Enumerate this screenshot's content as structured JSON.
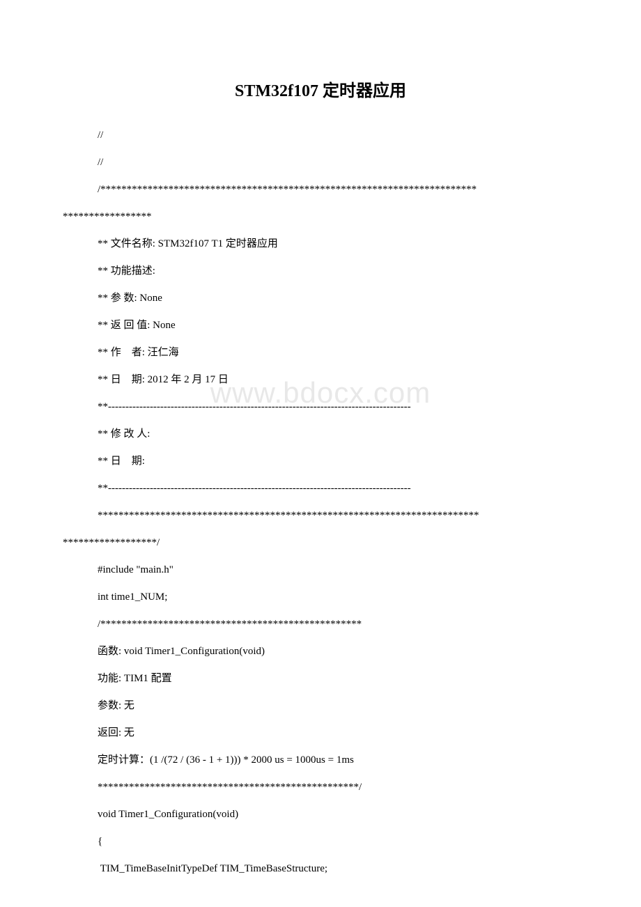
{
  "title": "STM32f107 定时器应用",
  "watermark": "www.bdocx.com",
  "lines": [
    {
      "cls": "line",
      "text": "//"
    },
    {
      "cls": "line",
      "text": "//"
    },
    {
      "cls": "line",
      "text": "/************************************************************************"
    },
    {
      "cls": "line-flush",
      "text": "*****************"
    },
    {
      "cls": "line",
      "text": "** 文件名称: STM32f107 T1 定时器应用"
    },
    {
      "cls": "line",
      "text": "** 功能描述:"
    },
    {
      "cls": "line",
      "text": "** 参 数: None"
    },
    {
      "cls": "line",
      "text": "** 返 回 值: None"
    },
    {
      "cls": "line",
      "text": "** 作    者: 汪仁海"
    },
    {
      "cls": "line",
      "text": "** 日    期: 2012 年 2 月 17 日"
    },
    {
      "cls": "line",
      "text": "**---------------------------------------------------------------------------------------"
    },
    {
      "cls": "line",
      "text": "** 修 改 人:"
    },
    {
      "cls": "line",
      "text": "** 日    期:"
    },
    {
      "cls": "line",
      "text": "**---------------------------------------------------------------------------------------"
    },
    {
      "cls": "line",
      "text": "*************************************************************************"
    },
    {
      "cls": "line-flush",
      "text": "******************/"
    },
    {
      "cls": "line",
      "text": "#include \"main.h\""
    },
    {
      "cls": "line",
      "text": "int time1_NUM;"
    },
    {
      "cls": "line",
      "text": "/**************************************************"
    },
    {
      "cls": "line",
      "text": "函数: void Timer1_Configuration(void)"
    },
    {
      "cls": "line",
      "text": "功能: TIM1 配置"
    },
    {
      "cls": "line",
      "text": "参数: 无"
    },
    {
      "cls": "line",
      "text": "返回: 无"
    },
    {
      "cls": "line",
      "text": "定时计算：(1 /(72 / (36 - 1 + 1))) * 2000 us = 1000us = 1ms"
    },
    {
      "cls": "line",
      "text": "**************************************************/"
    },
    {
      "cls": "line",
      "text": "void Timer1_Configuration(void)"
    },
    {
      "cls": "line",
      "text": "{"
    },
    {
      "cls": "line",
      "text": " TIM_TimeBaseInitTypeDef TIM_TimeBaseStructure;"
    }
  ]
}
